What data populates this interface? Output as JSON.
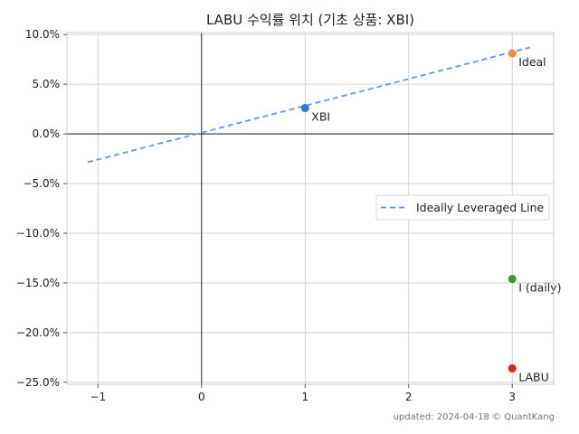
{
  "chart_data": {
    "type": "scatter",
    "title": "LABU 수익률 위치 (기초 상품: XBI)",
    "footer": "updated: 2024-04-18 © QuantKang",
    "xlim": [
      -1.3,
      3.4
    ],
    "ylim": [
      -25.2,
      10.2
    ],
    "x_ticks": [
      {
        "value": -1,
        "label": "−1"
      },
      {
        "value": 0,
        "label": "0"
      },
      {
        "value": 1,
        "label": "1"
      },
      {
        "value": 2,
        "label": "2"
      },
      {
        "value": 3,
        "label": "3"
      }
    ],
    "y_ticks": [
      {
        "value": 10,
        "label": "10.0%"
      },
      {
        "value": 5,
        "label": "5.0%"
      },
      {
        "value": 0,
        "label": "0.0%"
      },
      {
        "value": -5,
        "label": "−5.0%"
      },
      {
        "value": -10,
        "label": "−10.0%"
      },
      {
        "value": -15,
        "label": "−15.0%"
      },
      {
        "value": -20,
        "label": "−20.0%"
      },
      {
        "value": -25,
        "label": "−25.0%"
      }
    ],
    "grid": true,
    "line": {
      "name": "Ideally Leveraged Line",
      "color": "#6495ED",
      "x": [
        -1.1,
        3.17
      ],
      "y": [
        -2.85,
        8.7
      ]
    },
    "points": [
      {
        "label": "XBI",
        "x": 1,
        "y": 2.6,
        "color": "#2f7bc4"
      },
      {
        "label": "Ideal",
        "x": 3,
        "y": 8.1,
        "color": "#f28c38"
      },
      {
        "label": "I (daily)",
        "x": 3,
        "y": -14.6,
        "color": "#33a02c"
      },
      {
        "label": "LABU",
        "x": 3,
        "y": -23.6,
        "color": "#d62728"
      }
    ],
    "legend": {
      "placement": "center-right",
      "entries": [
        "Ideally Leveraged Line"
      ]
    }
  }
}
